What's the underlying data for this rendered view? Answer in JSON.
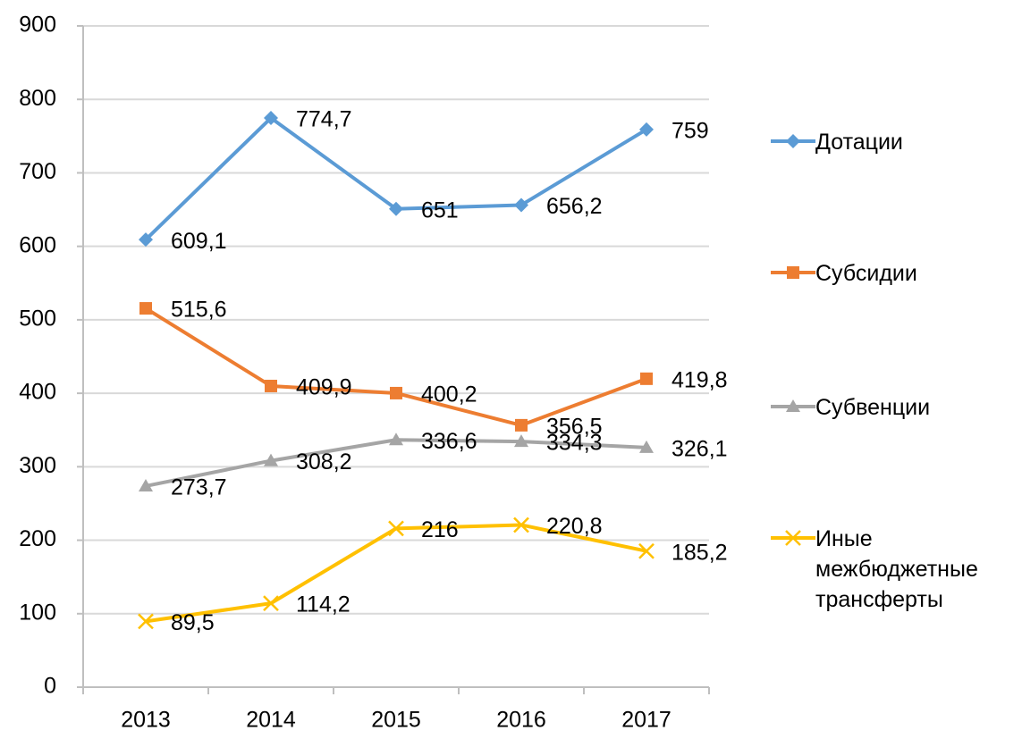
{
  "chart_data": {
    "type": "line",
    "categories": [
      "2013",
      "2014",
      "2015",
      "2016",
      "2017"
    ],
    "ylim": [
      0,
      900
    ],
    "yticks": [
      0,
      100,
      200,
      300,
      400,
      500,
      600,
      700,
      800,
      900
    ],
    "grid": true,
    "legend": "right",
    "series": [
      {
        "name": "Дотации",
        "color": "#5b9bd5",
        "marker": "diamond",
        "values": [
          609.1,
          774.7,
          651,
          656.2,
          759
        ],
        "value_labels": [
          "609,1",
          "774,7",
          "651",
          "656,2",
          "759"
        ]
      },
      {
        "name": "Субсидии",
        "color": "#ed7d31",
        "marker": "square",
        "values": [
          515.6,
          409.9,
          400.2,
          356.5,
          419.8
        ],
        "value_labels": [
          "515,6",
          "409,9",
          "400,2",
          "356,5",
          "419,8"
        ]
      },
      {
        "name": "Субвенции",
        "color": "#a5a5a5",
        "marker": "triangle",
        "values": [
          273.7,
          308.2,
          336.6,
          334.3,
          326.1
        ],
        "value_labels": [
          "273,7",
          "308,2",
          "336,6",
          "334,3",
          "326,1"
        ]
      },
      {
        "name": "Иные межбюджетные трансферты",
        "color": "#ffc000",
        "marker": "x",
        "values": [
          89.5,
          114.2,
          216,
          220.8,
          185.2
        ],
        "value_labels": [
          "89,5",
          "114,2",
          "216",
          "220,8",
          "185,2"
        ]
      }
    ]
  }
}
